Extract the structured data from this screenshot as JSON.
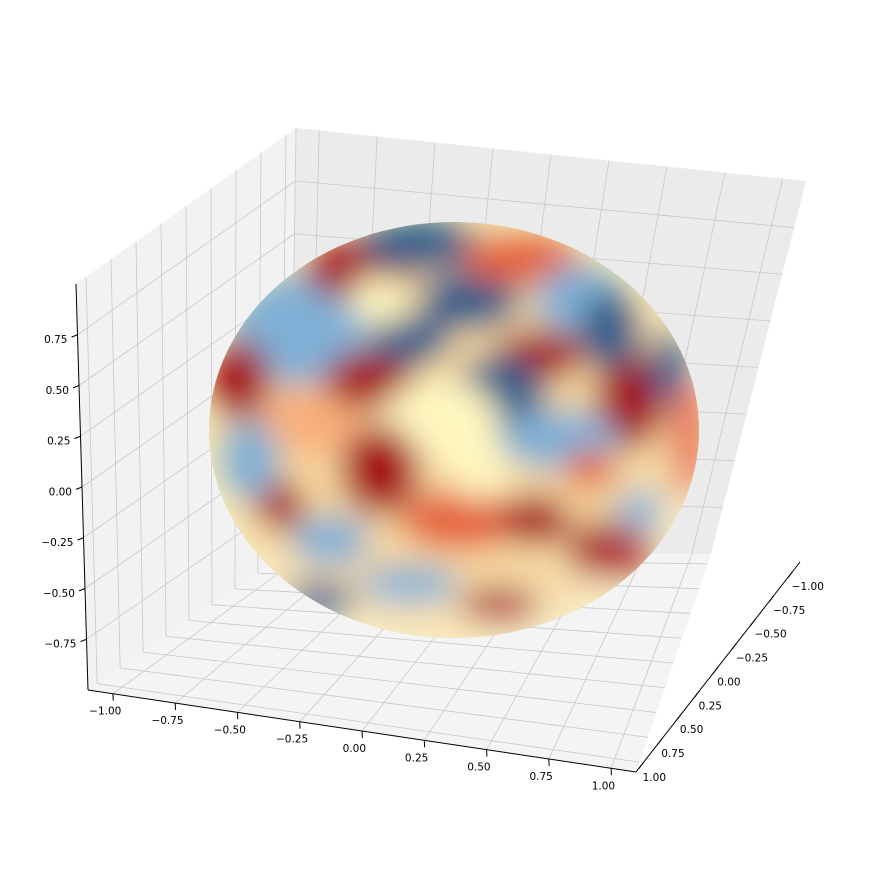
{
  "chart_data": {
    "type": "surface",
    "title": "",
    "xlabel": "",
    "ylabel": "",
    "zlabel": "",
    "colormap": "RdYlBu",
    "surface": "unit sphere with smooth random red/yellow/blue field",
    "x_ticks": [
      "−1.00",
      "−0.75",
      "−0.50",
      "−0.25",
      "0.00",
      "0.25",
      "0.50",
      "0.75",
      "1.00"
    ],
    "y_ticks": [
      "−1.00",
      "−0.75",
      "−0.50",
      "−0.25",
      "0.00",
      "0.25",
      "0.50",
      "0.75",
      "1.00"
    ],
    "z_ticks": [
      "0.75",
      "0.50",
      "0.25",
      "0.00",
      "−0.25",
      "−0.50",
      "−0.75"
    ],
    "xlim": [
      -1.1,
      1.1
    ],
    "ylim": [
      -1.1,
      1.1
    ],
    "zlim": [
      -1.0,
      1.0
    ],
    "grid": true,
    "pane_color": "#f2f2f2",
    "grid_color": "#c8c8c8"
  }
}
